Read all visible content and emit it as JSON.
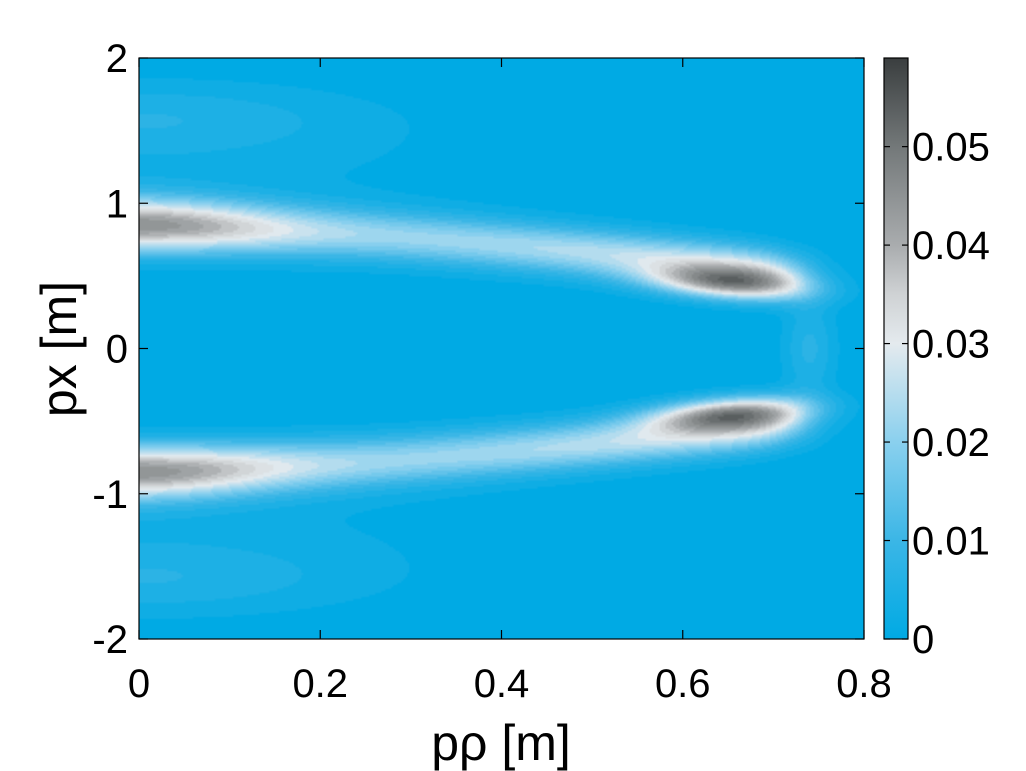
{
  "chart_data": {
    "type": "heatmap",
    "title": "",
    "xlabel": "pρ [m]",
    "ylabel": "px [m]",
    "xlim": [
      0,
      0.8
    ],
    "ylim": [
      -2,
      2
    ],
    "x_ticks": [
      "0",
      "0.2",
      "0.4",
      "0.6",
      "0.8"
    ],
    "y_ticks": [
      "-2",
      "-1",
      "0",
      "1",
      "2"
    ],
    "colorbar": {
      "range": [
        0,
        0.059
      ],
      "ticks": [
        "0",
        "0.01",
        "0.02",
        "0.03",
        "0.04",
        "0.05"
      ],
      "colormap": [
        {
          "value": 0.0,
          "color": "#00aae4"
        },
        {
          "value": 0.01,
          "color": "#3bb6e6"
        },
        {
          "value": 0.02,
          "color": "#8ad0ee"
        },
        {
          "value": 0.03,
          "color": "#e4eaee"
        },
        {
          "value": 0.035,
          "color": "#cfd2d4"
        },
        {
          "value": 0.04,
          "color": "#a9acae"
        },
        {
          "value": 0.05,
          "color": "#737879"
        },
        {
          "value": 0.059,
          "color": "#3a3e3f"
        }
      ]
    },
    "features": [
      {
        "name": "ridge",
        "x_range": [
          0,
          0.72
        ],
        "y_center": [
          0.85,
          0.5
        ],
        "peak": 0.045
      },
      {
        "name": "ridge",
        "x_range": [
          0,
          0.72
        ],
        "y_center": [
          -0.85,
          -0.5
        ],
        "peak": 0.045
      },
      {
        "name": "peak",
        "x": 0.65,
        "y": 0.45,
        "value": 0.058
      },
      {
        "name": "peak",
        "x": 0.65,
        "y": -0.45,
        "value": 0.058
      }
    ]
  }
}
